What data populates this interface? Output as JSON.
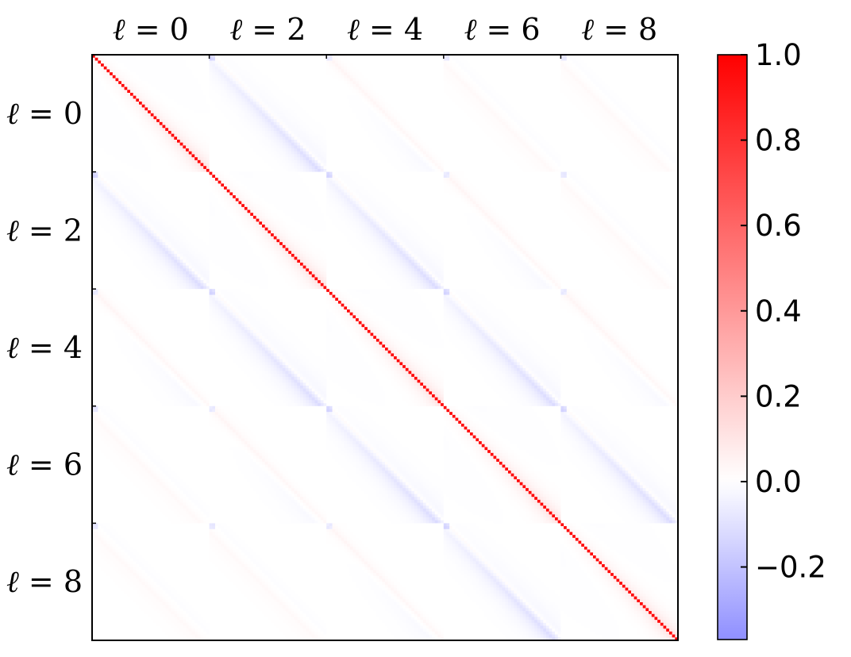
{
  "chart_data": {
    "type": "heatmap",
    "description": "Correlation matrix grouped into multipole blocks",
    "block_labels": [
      "ℓ = 0",
      "ℓ = 2",
      "ℓ = 4",
      "ℓ = 6",
      "ℓ = 8"
    ],
    "block_label_parts": [
      {
        "sym": "ℓ",
        "eq": " = ",
        "num": "0"
      },
      {
        "sym": "ℓ",
        "eq": " = ",
        "num": "2"
      },
      {
        "sym": "ℓ",
        "eq": " = ",
        "num": "4"
      },
      {
        "sym": "ℓ",
        "eq": " = ",
        "num": "6"
      },
      {
        "sym": "ℓ",
        "eq": " = ",
        "num": "8"
      }
    ],
    "bins_per_block": 40,
    "diagonal_value": 1.0,
    "colorbar": {
      "colormap": "bwr",
      "vmin": -0.37,
      "vmax": 1.0,
      "ticks": [
        1.0,
        0.8,
        0.6,
        0.4,
        0.2,
        0.0,
        -0.2
      ],
      "tick_labels": [
        "1.0",
        "0.8",
        "0.6",
        "0.4",
        "0.2",
        "0.0",
        "−0.2"
      ]
    },
    "features": {
      "diagonal_block_offdiag_positive": 0.1,
      "adjacent_block_anti_correlation": -0.08,
      "far_block_correlation": 0.03
    }
  }
}
